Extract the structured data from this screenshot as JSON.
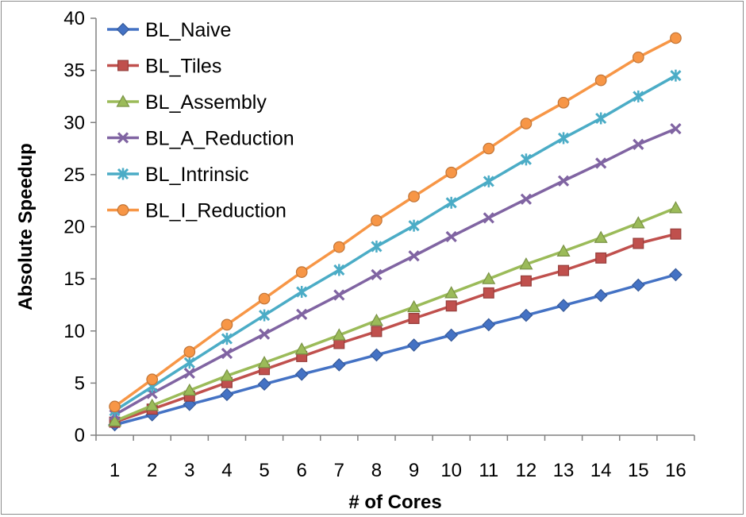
{
  "chart_data": {
    "type": "line",
    "title": "",
    "xlabel": "# of Cores",
    "ylabel": "Absolute Speedup",
    "x": [
      1,
      2,
      3,
      4,
      5,
      6,
      7,
      8,
      9,
      10,
      11,
      12,
      13,
      14,
      15,
      16
    ],
    "ylim": [
      0,
      40
    ],
    "yticks": [
      0,
      5,
      10,
      15,
      20,
      25,
      30,
      35,
      40
    ],
    "grid": false,
    "legend_position": "top-left",
    "series": [
      {
        "name": "BL_Naive",
        "color": "#4472C4",
        "marker": "diamond",
        "values": [
          1.0,
          1.95,
          2.95,
          3.9,
          4.9,
          5.85,
          6.75,
          7.7,
          8.65,
          9.6,
          10.6,
          11.5,
          12.45,
          13.4,
          14.4,
          15.4
        ]
      },
      {
        "name": "BL_Tiles",
        "color": "#C0504D",
        "marker": "square",
        "values": [
          1.25,
          2.5,
          3.75,
          5.05,
          6.3,
          7.55,
          8.8,
          9.95,
          11.2,
          12.4,
          13.65,
          14.8,
          15.8,
          17.0,
          18.4,
          19.3
        ]
      },
      {
        "name": "BL_Assembly",
        "color": "#9BBB59",
        "marker": "triangle",
        "values": [
          1.35,
          2.85,
          4.3,
          5.7,
          6.95,
          8.25,
          9.6,
          11.0,
          12.3,
          13.65,
          15.0,
          16.4,
          17.65,
          18.95,
          20.35,
          21.8
        ]
      },
      {
        "name": "BL_A_Reduction",
        "color": "#8064A2",
        "marker": "x",
        "values": [
          1.95,
          4.0,
          5.95,
          7.85,
          9.7,
          11.6,
          13.45,
          15.4,
          17.2,
          19.05,
          20.85,
          22.65,
          24.4,
          26.1,
          27.9,
          29.4
        ]
      },
      {
        "name": "BL_Intrinsic",
        "color": "#4BACC6",
        "marker": "star",
        "values": [
          2.35,
          4.65,
          6.95,
          9.25,
          11.5,
          13.75,
          15.85,
          18.1,
          20.1,
          22.3,
          24.35,
          26.45,
          28.5,
          30.4,
          32.5,
          34.5
        ]
      },
      {
        "name": "BL_I_Reduction",
        "color": "#F79646",
        "marker": "circle",
        "values": [
          2.75,
          5.35,
          8.0,
          10.6,
          13.1,
          15.65,
          18.05,
          20.6,
          22.9,
          25.2,
          27.5,
          29.9,
          31.9,
          34.05,
          36.25,
          38.1
        ]
      }
    ]
  }
}
